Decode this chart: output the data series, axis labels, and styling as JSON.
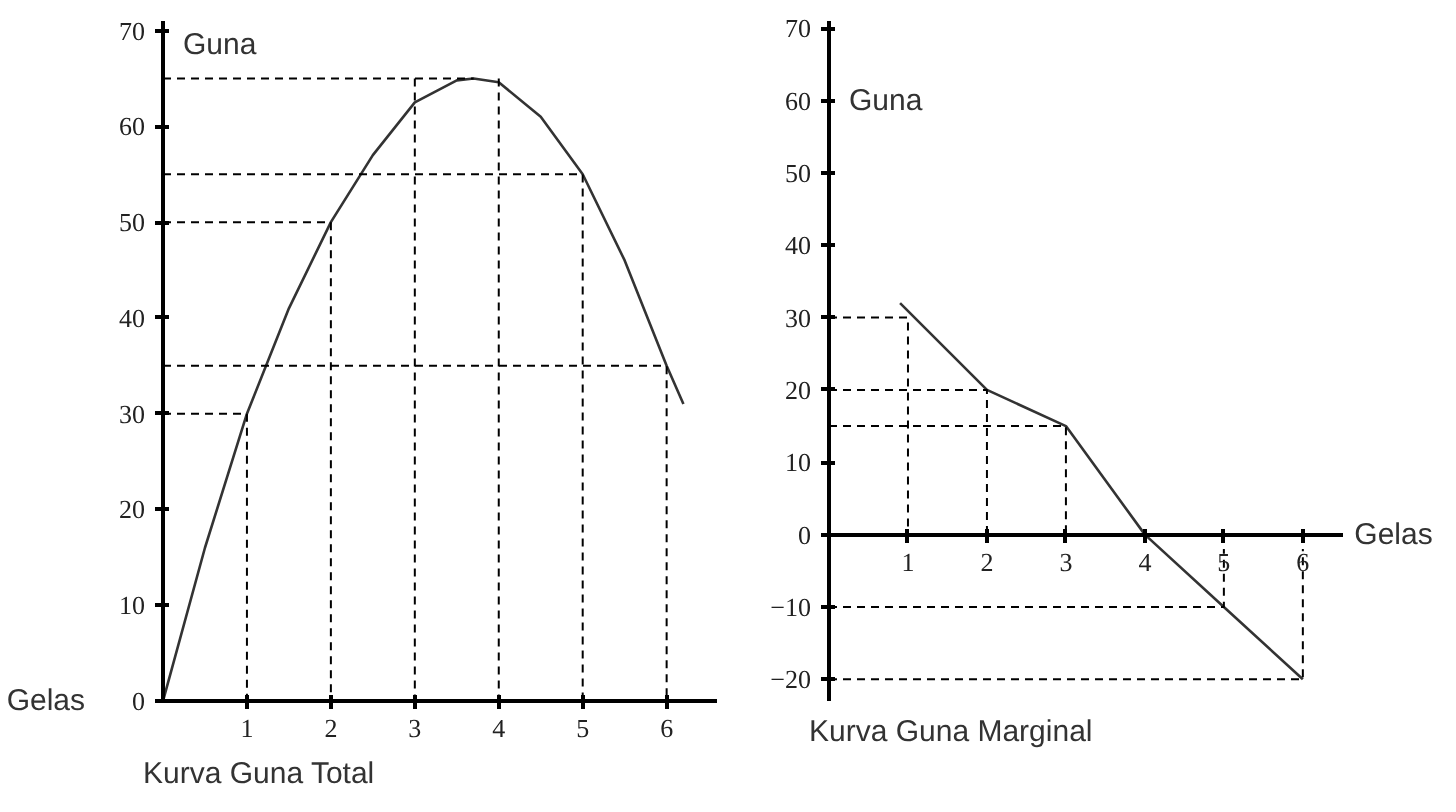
{
  "chart_data": [
    {
      "type": "line",
      "title": "Kurva Guna Total",
      "xlabel": "Gelas",
      "ylabel": "Guna",
      "xlim": [
        0,
        6.6
      ],
      "ylim": [
        0,
        71
      ],
      "xticks": [
        1,
        2,
        3,
        4,
        5,
        6
      ],
      "yticks": [
        0,
        10,
        20,
        30,
        40,
        50,
        60,
        70
      ],
      "grid": false,
      "series": [
        {
          "color": "#333333",
          "x": [
            0,
            0.5,
            1,
            1.5,
            2,
            2.5,
            3,
            3.5,
            3.7,
            4,
            4.5,
            5,
            5.5,
            6,
            6.2
          ],
          "values": [
            0,
            16,
            30,
            41,
            50,
            57,
            62.5,
            64.8,
            65,
            64.6,
            61,
            55,
            46,
            35,
            31
          ]
        },
        {
          "color": "#000000",
          "line_style": "dashed",
          "x": [
            0,
            1,
            1
          ],
          "values": [
            30,
            30,
            0
          ]
        },
        {
          "color": "#000000",
          "line_style": "dashed",
          "x": [
            0,
            2,
            2
          ],
          "values": [
            50,
            50,
            0
          ]
        },
        {
          "color": "#000000",
          "line_style": "dashed",
          "x": [
            0,
            5,
            5
          ],
          "values": [
            55,
            55,
            0
          ]
        },
        {
          "color": "#000000",
          "line_style": "dashed",
          "x": [
            0,
            6,
            6
          ],
          "values": [
            35,
            35,
            0
          ]
        },
        {
          "color": "#000000",
          "line_style": "dashed",
          "x": [
            0,
            3.7
          ],
          "values": [
            65,
            65
          ]
        },
        {
          "color": "#000000",
          "line_style": "dashed",
          "x": [
            3,
            3
          ],
          "values": [
            65,
            0
          ]
        },
        {
          "color": "#000000",
          "line_style": "dashed",
          "x": [
            4,
            4
          ],
          "values": [
            65,
            0
          ]
        }
      ]
    },
    {
      "type": "line",
      "title": "Kurva Guna Marginal",
      "xlabel": "Gelas",
      "ylabel": "Guna",
      "xlim": [
        0,
        6.5
      ],
      "ylim": [
        -23,
        71
      ],
      "xticks": [
        1,
        2,
        3,
        4,
        5,
        6
      ],
      "yticks": [
        -20,
        -10,
        0,
        10,
        20,
        30,
        40,
        50,
        60,
        70
      ],
      "grid": false,
      "series": [
        {
          "color": "#333333",
          "x": [
            0.9,
            2,
            3,
            4,
            5,
            6
          ],
          "values": [
            32,
            20,
            15,
            0,
            -10,
            -20
          ]
        },
        {
          "color": "#000000",
          "line_style": "dashed",
          "x": [
            0,
            1,
            1
          ],
          "values": [
            30,
            30,
            0
          ]
        },
        {
          "color": "#000000",
          "line_style": "dashed",
          "x": [
            0,
            2,
            2
          ],
          "values": [
            20,
            20,
            0
          ]
        },
        {
          "color": "#000000",
          "line_style": "dashed",
          "x": [
            0,
            3,
            3
          ],
          "values": [
            15,
            15,
            0
          ]
        },
        {
          "color": "#000000",
          "line_style": "dashed",
          "x": [
            0,
            5,
            5
          ],
          "values": [
            -10,
            -10,
            -2
          ]
        },
        {
          "color": "#000000",
          "line_style": "dashed",
          "x": [
            0,
            6,
            6
          ],
          "values": [
            -20,
            -20,
            -2
          ]
        }
      ]
    }
  ]
}
